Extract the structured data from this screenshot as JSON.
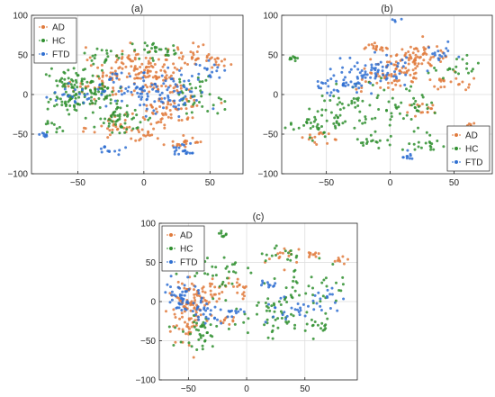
{
  "figure": {
    "legend_labels": [
      "AD",
      "HC",
      "FTD"
    ],
    "colors": {
      "AD": "#e07a3c",
      "HC": "#2f8f2f",
      "FTD": "#2f6fd1"
    }
  },
  "chart_data": [
    {
      "type": "scatter",
      "title": "(a)",
      "xlim": [
        -85,
        75
      ],
      "ylim": [
        -100,
        100
      ],
      "xticks": [
        -50,
        0,
        50
      ],
      "yticks": [
        -100,
        -50,
        0,
        50,
        100
      ],
      "xtick_labels": [
        "−50",
        "0",
        "50"
      ],
      "ytick_labels": [
        "−100",
        "−50",
        "0",
        "50",
        "100"
      ],
      "grid": true,
      "legend": "top-left",
      "series": [
        {
          "name": "AD",
          "color": "#e07a3c",
          "clusters": [
            [
              -10,
              40,
              14,
              10,
              70
            ],
            [
              10,
              20,
              14,
              12,
              70
            ],
            [
              20,
              -20,
              12,
              12,
              60
            ],
            [
              -30,
              10,
              12,
              10,
              40
            ],
            [
              40,
              50,
              10,
              8,
              30
            ],
            [
              55,
              42,
              5,
              4,
              10
            ],
            [
              -20,
              -40,
              10,
              8,
              30
            ],
            [
              30,
              -60,
              8,
              6,
              20
            ],
            [
              0,
              -50,
              6,
              5,
              15
            ]
          ]
        },
        {
          "name": "HC",
          "color": "#2f8f2f",
          "clusters": [
            [
              -40,
              5,
              12,
              10,
              70
            ],
            [
              -20,
              -30,
              14,
              10,
              60
            ],
            [
              -55,
              20,
              8,
              7,
              30
            ],
            [
              -60,
              -10,
              8,
              7,
              30
            ],
            [
              10,
              55,
              12,
              6,
              30
            ],
            [
              -30,
              50,
              8,
              6,
              20
            ],
            [
              40,
              0,
              10,
              12,
              40
            ],
            [
              -70,
              -40,
              5,
              4,
              10
            ]
          ]
        },
        {
          "name": "FTD",
          "color": "#2f6fd1",
          "clusters": [
            [
              20,
              0,
              14,
              15,
              70
            ],
            [
              -10,
              10,
              12,
              10,
              50
            ],
            [
              30,
              -70,
              6,
              4,
              20
            ],
            [
              -25,
              -70,
              5,
              3,
              12
            ],
            [
              -75,
              -50,
              3,
              2,
              8
            ],
            [
              50,
              30,
              6,
              5,
              15
            ],
            [
              -55,
              0,
              8,
              6,
              20
            ]
          ]
        }
      ]
    },
    {
      "type": "scatter",
      "title": "(b)",
      "xlim": [
        -85,
        80
      ],
      "ylim": [
        -100,
        100
      ],
      "xticks": [
        -50,
        0,
        50
      ],
      "yticks": [
        -100,
        -50,
        0,
        50,
        100
      ],
      "xtick_labels": [
        "−50",
        "0",
        "50"
      ],
      "ytick_labels": [
        "−100",
        "−50",
        "0",
        "50",
        "100"
      ],
      "grid": true,
      "legend": "bottom-right",
      "series": [
        {
          "name": "AD",
          "color": "#e07a3c",
          "clusters": [
            [
              20,
              45,
              15,
              10,
              80
            ],
            [
              0,
              20,
              12,
              10,
              50
            ],
            [
              -10,
              60,
              5,
              3,
              15
            ],
            [
              -60,
              -55,
              6,
              3,
              15
            ],
            [
              65,
              -40,
              5,
              3,
              12
            ],
            [
              45,
              15,
              8,
              6,
              20
            ],
            [
              25,
              -20,
              8,
              6,
              15
            ]
          ]
        },
        {
          "name": "HC",
          "color": "#2f8f2f",
          "clusters": [
            [
              -30,
              -20,
              15,
              15,
              60
            ],
            [
              -60,
              -40,
              10,
              8,
              30
            ],
            [
              10,
              -10,
              12,
              15,
              40
            ],
            [
              -75,
              45,
              3,
              2,
              10
            ],
            [
              50,
              35,
              10,
              6,
              20
            ],
            [
              30,
              -60,
              10,
              6,
              20
            ],
            [
              -10,
              -60,
              8,
              5,
              15
            ]
          ]
        },
        {
          "name": "FTD",
          "color": "#2f6fd1",
          "clusters": [
            [
              -10,
              30,
              15,
              10,
              60
            ],
            [
              -30,
              15,
              10,
              8,
              30
            ],
            [
              5,
              95,
              2,
              1,
              4
            ],
            [
              15,
              -80,
              4,
              3,
              10
            ],
            [
              -50,
              10,
              8,
              5,
              15
            ],
            [
              40,
              50,
              8,
              5,
              15
            ]
          ]
        }
      ]
    },
    {
      "type": "scatter",
      "title": "(c)",
      "xlim": [
        -75,
        95
      ],
      "ylim": [
        -100,
        100
      ],
      "xticks": [
        -50,
        0,
        50
      ],
      "yticks": [
        -100,
        -50,
        0,
        50,
        100
      ],
      "xtick_labels": [
        "−50",
        "0",
        "50"
      ],
      "ytick_labels": [
        "−100",
        "−50",
        "0",
        "50",
        "100"
      ],
      "grid": true,
      "legend": "top-left",
      "series": [
        {
          "name": "AD",
          "color": "#e07a3c",
          "clusters": [
            [
              -50,
              -10,
              8,
              20,
              90
            ],
            [
              -30,
              10,
              10,
              8,
              30
            ],
            [
              -10,
              20,
              10,
              5,
              20
            ],
            [
              35,
              55,
              8,
              6,
              15
            ],
            [
              80,
              52,
              3,
              2,
              8
            ],
            [
              55,
              60,
              4,
              3,
              8
            ],
            [
              -20,
              -25,
              5,
              4,
              10
            ]
          ]
        },
        {
          "name": "HC",
          "color": "#2f8f2f",
          "clusters": [
            [
              -40,
              -40,
              10,
              12,
              40
            ],
            [
              -20,
              40,
              15,
              10,
              30
            ],
            [
              20,
              -20,
              18,
              15,
              50
            ],
            [
              50,
              20,
              20,
              15,
              40
            ],
            [
              -20,
              85,
              3,
              2,
              8
            ],
            [
              30,
              60,
              10,
              6,
              15
            ],
            [
              60,
              -30,
              8,
              8,
              15
            ]
          ]
        },
        {
          "name": "FTD",
          "color": "#2f6fd1",
          "clusters": [
            [
              -55,
              5,
              8,
              15,
              50
            ],
            [
              -35,
              -15,
              8,
              8,
              25
            ],
            [
              40,
              -10,
              12,
              10,
              25
            ],
            [
              70,
              0,
              8,
              8,
              15
            ],
            [
              -10,
              -15,
              5,
              4,
              10
            ],
            [
              20,
              20,
              5,
              4,
              10
            ]
          ]
        }
      ]
    }
  ]
}
